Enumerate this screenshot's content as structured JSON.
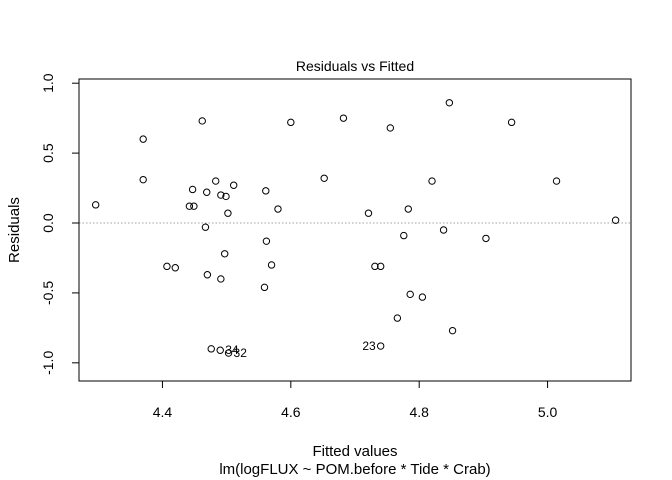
{
  "chart_data": {
    "type": "scatter",
    "title": "Residuals vs Fitted",
    "xlabel": "Fitted values",
    "ylabel": "Residuals",
    "subtitle": "lm(logFLUX ~ POM.before * Tide * Crab)",
    "xlim": [
      4.27,
      5.13
    ],
    "ylim": [
      -1.13,
      1.03
    ],
    "xticks": [
      4.4,
      4.6,
      4.8,
      5.0
    ],
    "xtick_labels": [
      "4.4",
      "4.6",
      "4.8",
      "5.0"
    ],
    "yticks": [
      1.0,
      0.5,
      0.0,
      -0.5,
      -1.0
    ],
    "ytick_labels": [
      "1.0",
      "0.5",
      "0.0",
      "-0.5",
      "-1.0"
    ],
    "reference_line": 0,
    "grid": false,
    "points": [
      {
        "x": 4.296,
        "y": 0.13
      },
      {
        "x": 4.37,
        "y": 0.6
      },
      {
        "x": 4.37,
        "y": 0.31
      },
      {
        "x": 4.407,
        "y": -0.31
      },
      {
        "x": 4.42,
        "y": -0.32
      },
      {
        "x": 4.442,
        "y": 0.12
      },
      {
        "x": 4.447,
        "y": 0.24
      },
      {
        "x": 4.449,
        "y": 0.12
      },
      {
        "x": 4.462,
        "y": 0.73
      },
      {
        "x": 4.467,
        "y": -0.03
      },
      {
        "x": 4.469,
        "y": 0.22
      },
      {
        "x": 4.47,
        "y": -0.37
      },
      {
        "x": 4.476,
        "y": -0.9
      },
      {
        "x": 4.483,
        "y": 0.3
      },
      {
        "x": 4.49,
        "y": -0.91
      },
      {
        "x": 4.491,
        "y": -0.4
      },
      {
        "x": 4.491,
        "y": 0.2
      },
      {
        "x": 4.497,
        "y": -0.22
      },
      {
        "x": 4.499,
        "y": 0.19
      },
      {
        "x": 4.502,
        "y": 0.07
      },
      {
        "x": 4.503,
        "y": -0.93
      },
      {
        "x": 4.511,
        "y": 0.27
      },
      {
        "x": 4.559,
        "y": -0.46
      },
      {
        "x": 4.561,
        "y": 0.23
      },
      {
        "x": 4.562,
        "y": -0.13
      },
      {
        "x": 4.57,
        "y": -0.3
      },
      {
        "x": 4.58,
        "y": 0.1
      },
      {
        "x": 4.6,
        "y": 0.72
      },
      {
        "x": 4.652,
        "y": 0.32
      },
      {
        "x": 4.682,
        "y": 0.75
      },
      {
        "x": 4.721,
        "y": 0.07
      },
      {
        "x": 4.731,
        "y": -0.31
      },
      {
        "x": 4.74,
        "y": -0.31
      },
      {
        "x": 4.74,
        "y": -0.88
      },
      {
        "x": 4.755,
        "y": 0.68
      },
      {
        "x": 4.766,
        "y": -0.68
      },
      {
        "x": 4.776,
        "y": -0.09
      },
      {
        "x": 4.783,
        "y": 0.1
      },
      {
        "x": 4.786,
        "y": -0.51
      },
      {
        "x": 4.805,
        "y": -0.53
      },
      {
        "x": 4.82,
        "y": 0.3
      },
      {
        "x": 4.838,
        "y": -0.05
      },
      {
        "x": 4.847,
        "y": 0.86
      },
      {
        "x": 4.852,
        "y": -0.77
      },
      {
        "x": 4.904,
        "y": -0.11
      },
      {
        "x": 4.944,
        "y": 0.72
      },
      {
        "x": 5.014,
        "y": 0.3
      },
      {
        "x": 5.106,
        "y": 0.02
      }
    ],
    "point_labels": [
      {
        "text": "23",
        "x": 4.74,
        "y": -0.88,
        "side": "left"
      },
      {
        "text": "34",
        "x": 4.49,
        "y": -0.91,
        "side": "right"
      },
      {
        "text": "32",
        "x": 4.503,
        "y": -0.93,
        "side": "right"
      }
    ]
  }
}
